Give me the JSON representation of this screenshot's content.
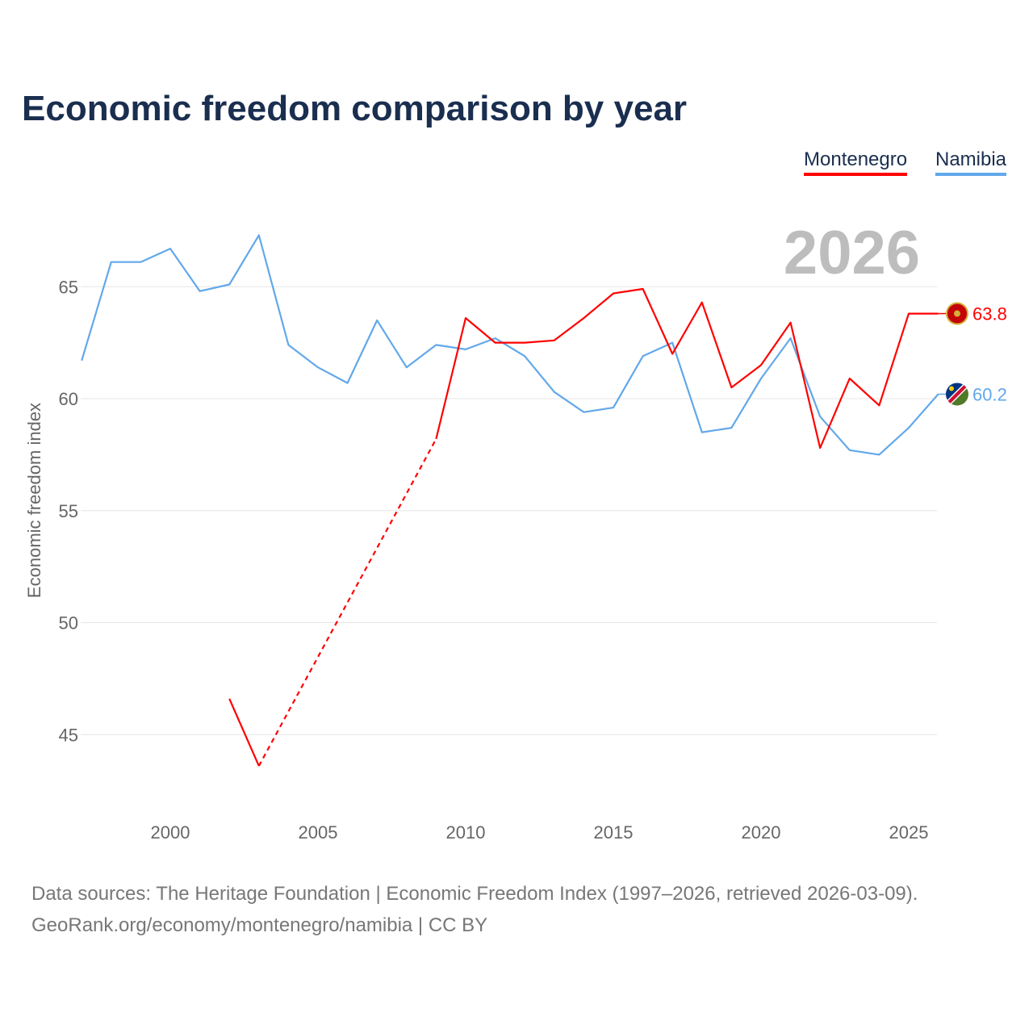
{
  "title": "Economic freedom comparison by year",
  "year_label": "2026",
  "source_line1": "Data sources: The Heritage Foundation | Economic Freedom Index (1997–2026, retrieved 2026-03-09).",
  "source_line2": "GeoRank.org/economy/montenegro/namibia | CC BY",
  "chart_data": {
    "type": "line",
    "title": "Economic freedom comparison by year",
    "xlabel": "",
    "ylabel": "Economic freedom index",
    "xlim": [
      1997,
      2026
    ],
    "ylim": [
      41.5,
      68.5
    ],
    "x_ticks": [
      2000,
      2005,
      2010,
      2015,
      2020,
      2025
    ],
    "y_ticks": [
      45,
      50,
      55,
      60,
      65
    ],
    "grid": true,
    "legend_position": "top-right",
    "series": [
      {
        "name": "Montenegro",
        "color": "#ff0000",
        "end_label": "63.8",
        "icon": "montenegro-flag-icon",
        "x": [
          2002,
          2003,
          2009,
          2010,
          2011,
          2012,
          2013,
          2014,
          2015,
          2016,
          2017,
          2018,
          2019,
          2020,
          2021,
          2022,
          2023,
          2024,
          2025,
          2026
        ],
        "y": [
          46.6,
          43.6,
          58.2,
          63.6,
          62.5,
          62.5,
          62.6,
          63.6,
          64.7,
          64.9,
          62.0,
          64.3,
          60.5,
          61.5,
          63.4,
          57.8,
          60.9,
          59.7,
          63.8,
          63.8
        ],
        "gaps_dashed": [
          [
            2003,
            2009
          ]
        ]
      },
      {
        "name": "Namibia",
        "color": "#62a8ea",
        "end_label": "60.2",
        "icon": "namibia-flag-icon",
        "x": [
          1997,
          1998,
          1999,
          2000,
          2001,
          2002,
          2003,
          2004,
          2005,
          2006,
          2007,
          2008,
          2009,
          2010,
          2011,
          2012,
          2013,
          2014,
          2015,
          2016,
          2017,
          2018,
          2019,
          2020,
          2021,
          2022,
          2023,
          2024,
          2025,
          2026
        ],
        "y": [
          61.7,
          66.1,
          66.1,
          66.7,
          64.8,
          65.1,
          67.3,
          62.4,
          61.4,
          60.7,
          63.5,
          61.4,
          62.4,
          62.2,
          62.7,
          61.9,
          60.3,
          59.4,
          59.6,
          61.9,
          62.5,
          58.5,
          58.7,
          60.9,
          62.7,
          59.2,
          57.7,
          57.5,
          58.7,
          60.2
        ]
      }
    ]
  }
}
